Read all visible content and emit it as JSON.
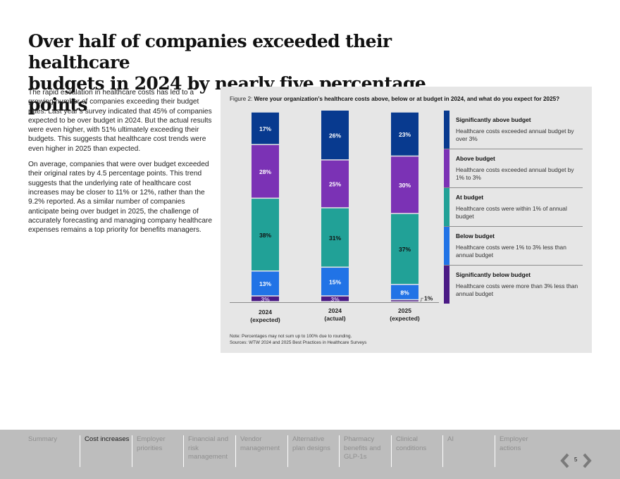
{
  "page": {
    "title_line1": "Over half of companies exceeded their healthcare",
    "title_line2": "budgets in 2024 by nearly five percentage points",
    "paragraphs": [
      "The rapid escalation in healthcare costs has led to a growing number of companies exceeding their budget rates. Last year’s survey indicated that 45% of companies expected to be over budget in 2024. But the actual results were even higher, with 51% ultimately exceeding their budgets. This suggests that healthcare cost trends were even higher in 2025 than expected.",
      "On average, companies that were over budget exceeded their original rates by 4.5 percentage points. This trend suggests that the underlying rate of healthcare cost increases may be closer to 11% or 12%, rather than the 9.2% reported. As a similar number of companies anticipate being over budget in 2025, the challenge of accurately forecasting and managing company healthcare expenses remains a top priority for benefits managers."
    ]
  },
  "figure": {
    "label": "Figure 2: ",
    "question": "Were your organization’s healthcare costs above, below or at budget in 2024, and what do you expect for 2025?",
    "note": "Note: Percentages may not sum up to 100% due to rounding.",
    "sources": "Sources: WTW 2024 and 2025 Best Practices in Healthcare Surveys"
  },
  "chart_data": {
    "type": "bar",
    "stacked": true,
    "title": "Were your organization’s healthcare costs above, below or at budget in 2024, and what do you expect for 2025?",
    "xlabel": "",
    "ylabel": "",
    "ylim": [
      0,
      100
    ],
    "grid": false,
    "legend_position": "right",
    "categories": [
      {
        "line1": "2024",
        "line2": "(expected)"
      },
      {
        "line1": "2024",
        "line2": "(actual)"
      },
      {
        "line1": "2025",
        "line2": "(expected)"
      }
    ],
    "series": [
      {
        "name": "Significantly below budget",
        "description": "Healthcare costs were more than 3% less than annual budget",
        "color": "#4b1a85",
        "label_color": "#d9c8f0",
        "values": [
          3,
          3,
          1
        ],
        "labels": [
          "3%",
          "3%",
          "1%"
        ]
      },
      {
        "name": "Below budget",
        "description": "Healthcare costs were 1% to 3% less than annual budget",
        "color": "#2173e6",
        "label_color": "#ffffff",
        "values": [
          13,
          15,
          8
        ],
        "labels": [
          "13%",
          "15%",
          "8%"
        ]
      },
      {
        "name": "At budget",
        "description": "Healthcare costs were within 1% of annual budget",
        "color": "#21a197",
        "label_color": "#111111",
        "values": [
          38,
          31,
          37
        ],
        "labels": [
          "38%",
          "31%",
          "37%"
        ]
      },
      {
        "name": "Above budget",
        "description": "Healthcare costs exceeded annual budget by 1% to 3%",
        "color": "#7b32b5",
        "label_color": "#ffffff",
        "values": [
          28,
          25,
          30
        ],
        "labels": [
          "28%",
          "25%",
          "30%"
        ]
      },
      {
        "name": "Significantly above budget",
        "description": "Healthcare costs exceeded annual budget by over 3%",
        "color": "#083a8f",
        "label_color": "#ffffff",
        "values": [
          17,
          26,
          23
        ],
        "labels": [
          "17%",
          "26%",
          "23%"
        ]
      }
    ],
    "legend_order": [
      "Significantly above budget",
      "Above budget",
      "At budget",
      "Below budget",
      "Significantly below budget"
    ]
  },
  "footer": {
    "nav": [
      {
        "label": "Summary",
        "active": false
      },
      {
        "label": "Cost increases",
        "active": true
      },
      {
        "label": "Employer priorities",
        "active": false
      },
      {
        "label": "Financial and risk management",
        "active": false
      },
      {
        "label": "Vendor management",
        "active": false
      },
      {
        "label": "Alternative plan designs",
        "active": false
      },
      {
        "label": "Pharmacy benefits and GLP-1s",
        "active": false
      },
      {
        "label": "Clinical conditions",
        "active": false
      },
      {
        "label": "AI",
        "active": false
      },
      {
        "label": "Employer actions",
        "active": false
      }
    ],
    "page_number": "5",
    "prev_icon": "chevron-left-icon",
    "next_icon": "chevron-right-icon"
  }
}
